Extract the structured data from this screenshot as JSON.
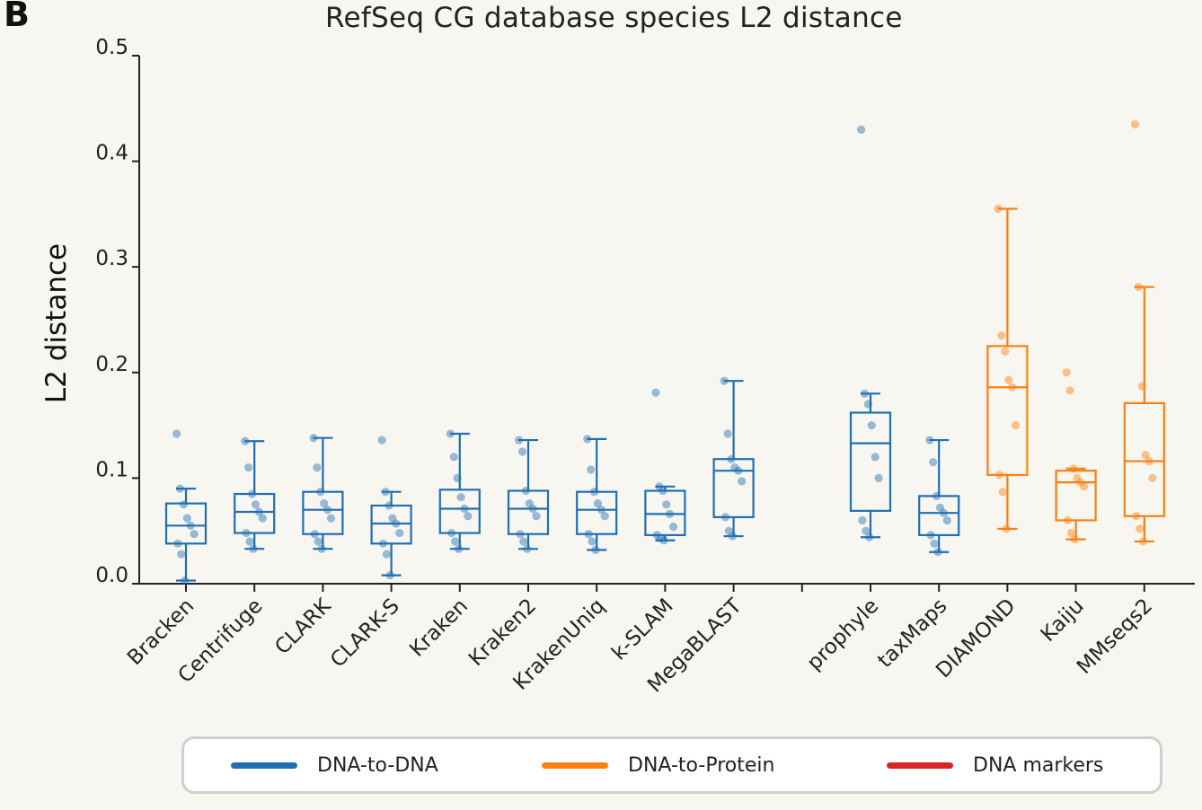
{
  "panel_label": "B",
  "chart_data": {
    "type": "box",
    "title": "RefSeq CG database species L2 distance",
    "xlabel": "",
    "ylabel": "L2 distance",
    "ylim": [
      0,
      0.5
    ],
    "yticks": [
      "0.0",
      "0.1",
      "0.2",
      "0.3",
      "0.4",
      "0.5"
    ],
    "categories": [
      {
        "name": "Bracken",
        "group": "DNA-to-DNA",
        "q1": 0.038,
        "median": 0.055,
        "q3": 0.076,
        "whisker_low": 0.003,
        "whisker_high": 0.09,
        "points": [
          0.142,
          0.09,
          0.075,
          0.062,
          0.055,
          0.047,
          0.038,
          0.028,
          0.003
        ]
      },
      {
        "name": "Centrifuge",
        "group": "DNA-to-DNA",
        "q1": 0.048,
        "median": 0.068,
        "q3": 0.085,
        "whisker_low": 0.033,
        "whisker_high": 0.135,
        "points": [
          0.135,
          0.11,
          0.085,
          0.075,
          0.068,
          0.062,
          0.048,
          0.04,
          0.033
        ]
      },
      {
        "name": "CLARK",
        "group": "DNA-to-DNA",
        "q1": 0.047,
        "median": 0.07,
        "q3": 0.087,
        "whisker_low": 0.033,
        "whisker_high": 0.138,
        "points": [
          0.138,
          0.11,
          0.087,
          0.076,
          0.07,
          0.062,
          0.047,
          0.04,
          0.033
        ]
      },
      {
        "name": "CLARK-S",
        "group": "DNA-to-DNA",
        "q1": 0.038,
        "median": 0.057,
        "q3": 0.074,
        "whisker_low": 0.008,
        "whisker_high": 0.087,
        "points": [
          0.136,
          0.087,
          0.074,
          0.062,
          0.057,
          0.048,
          0.038,
          0.028,
          0.008
        ]
      },
      {
        "name": "Kraken",
        "group": "DNA-to-DNA",
        "q1": 0.048,
        "median": 0.071,
        "q3": 0.089,
        "whisker_low": 0.033,
        "whisker_high": 0.142,
        "points": [
          0.142,
          0.12,
          0.1,
          0.082,
          0.071,
          0.064,
          0.048,
          0.04,
          0.033
        ]
      },
      {
        "name": "Kraken2",
        "group": "DNA-to-DNA",
        "q1": 0.047,
        "median": 0.071,
        "q3": 0.088,
        "whisker_low": 0.033,
        "whisker_high": 0.136,
        "points": [
          0.136,
          0.125,
          0.088,
          0.076,
          0.071,
          0.064,
          0.047,
          0.04,
          0.033
        ]
      },
      {
        "name": "KrakenUniq",
        "group": "DNA-to-DNA",
        "q1": 0.047,
        "median": 0.07,
        "q3": 0.087,
        "whisker_low": 0.032,
        "whisker_high": 0.137,
        "points": [
          0.137,
          0.108,
          0.087,
          0.076,
          0.07,
          0.064,
          0.047,
          0.04,
          0.032
        ]
      },
      {
        "name": "k-SLAM",
        "group": "DNA-to-DNA",
        "q1": 0.046,
        "median": 0.066,
        "q3": 0.088,
        "whisker_low": 0.041,
        "whisker_high": 0.092,
        "points": [
          0.181,
          0.092,
          0.088,
          0.075,
          0.066,
          0.054,
          0.046,
          0.043,
          0.041
        ]
      },
      {
        "name": "MegaBLAST",
        "group": "DNA-to-DNA",
        "q1": 0.063,
        "median": 0.107,
        "q3": 0.118,
        "whisker_low": 0.045,
        "whisker_high": 0.192,
        "points": [
          0.192,
          0.142,
          0.118,
          0.11,
          0.107,
          0.097,
          0.063,
          0.05,
          0.045
        ]
      },
      {
        "name": "prophyle",
        "group": "DNA-to-DNA",
        "q1": 0.069,
        "median": 0.133,
        "q3": 0.162,
        "whisker_low": 0.044,
        "whisker_high": 0.18,
        "points": [
          0.43,
          0.18,
          0.17,
          0.15,
          0.12,
          0.1,
          0.06,
          0.05,
          0.044
        ]
      },
      {
        "name": "taxMaps",
        "group": "DNA-to-DNA",
        "q1": 0.046,
        "median": 0.067,
        "q3": 0.083,
        "whisker_low": 0.03,
        "whisker_high": 0.136,
        "points": [
          0.136,
          0.115,
          0.083,
          0.072,
          0.067,
          0.06,
          0.046,
          0.038,
          0.03
        ]
      },
      {
        "name": "DIAMOND",
        "group": "DNA-to-Protein",
        "q1": 0.103,
        "median": 0.186,
        "q3": 0.225,
        "whisker_low": 0.052,
        "whisker_high": 0.355,
        "points": [
          0.355,
          0.235,
          0.22,
          0.193,
          0.186,
          0.15,
          0.103,
          0.087,
          0.052
        ]
      },
      {
        "name": "Kaiju",
        "group": "DNA-to-Protein",
        "q1": 0.06,
        "median": 0.096,
        "q3": 0.107,
        "whisker_low": 0.042,
        "whisker_high": 0.109,
        "points": [
          0.2,
          0.183,
          0.109,
          0.1,
          0.096,
          0.092,
          0.06,
          0.048,
          0.042
        ]
      },
      {
        "name": "MMseqs2",
        "group": "DNA-to-Protein",
        "q1": 0.064,
        "median": 0.116,
        "q3": 0.171,
        "whisker_low": 0.04,
        "whisker_high": 0.281,
        "points": [
          0.435,
          0.281,
          0.187,
          0.122,
          0.116,
          0.1,
          0.064,
          0.052,
          0.04
        ]
      }
    ],
    "legend": [
      {
        "label": "DNA-to-DNA",
        "color": "#1f6fb2"
      },
      {
        "label": "DNA-to-Protein",
        "color": "#ff7f0e"
      },
      {
        "label": "DNA markers",
        "color": "#d62728"
      }
    ]
  }
}
